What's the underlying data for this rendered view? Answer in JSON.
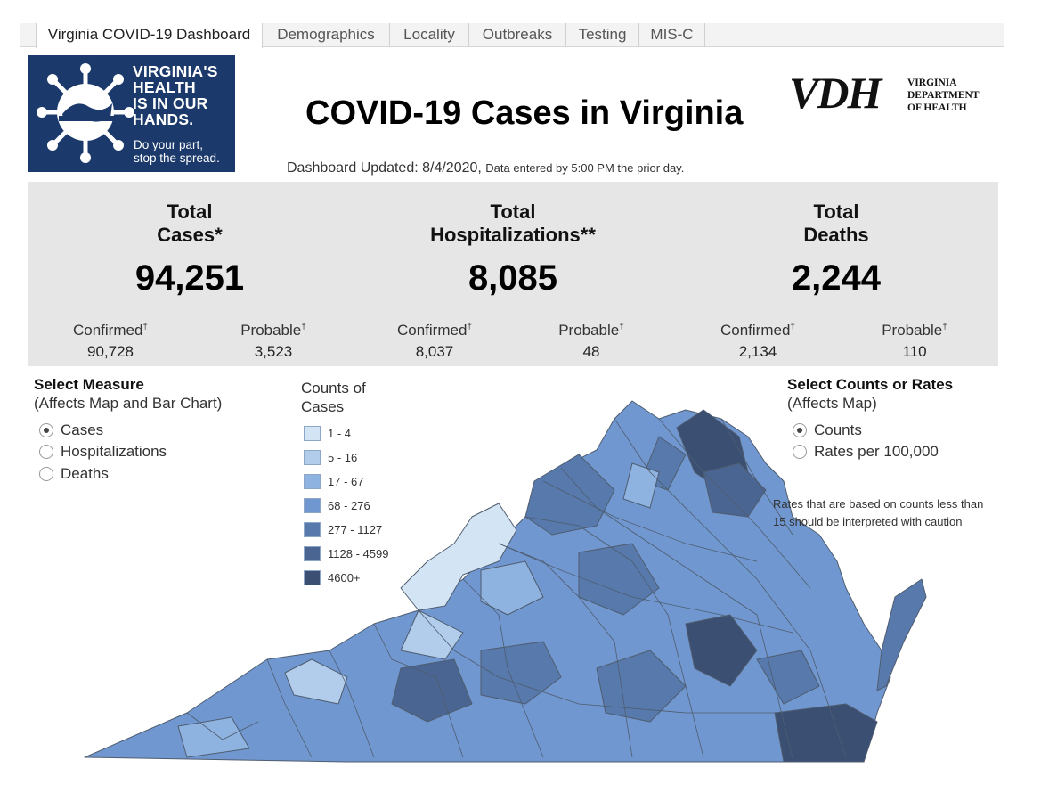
{
  "tabs": [
    {
      "label": "Virginia COVID-19 Dashboard",
      "active": true
    },
    {
      "label": "Demographics",
      "active": false
    },
    {
      "label": "Locality",
      "active": false
    },
    {
      "label": "Outbreaks",
      "active": false
    },
    {
      "label": "Testing",
      "active": false
    },
    {
      "label": "MIS-C",
      "active": false
    }
  ],
  "logo": {
    "headline_1": "VIRGINIA'S",
    "headline_2": "HEALTH",
    "headline_3": "IS IN OUR",
    "headline_4": "HANDS.",
    "sub_1": "Do your part,",
    "sub_2": "stop the spread.",
    "bg_color": "#1b3a6b"
  },
  "title": "COVID-19 Cases in Virginia",
  "updated": {
    "main": "Dashboard Updated: 8/4/2020,",
    "note": "Data entered by 5:00 PM the prior day."
  },
  "vdh": {
    "letters": "VDH",
    "line_1": "VIRGINIA",
    "line_2": "DEPARTMENT",
    "line_3": "OF HEALTH"
  },
  "stats": {
    "cases": {
      "head_1": "Total",
      "head_2": "Cases*",
      "total": "94,251",
      "confirmed_label": "Confirmed",
      "confirmed": "90,728",
      "probable_label": "Probable",
      "probable": "3,523"
    },
    "hosp": {
      "head_1": "Total",
      "head_2": "Hospitalizations**",
      "total": "8,085",
      "confirmed_label": "Confirmed",
      "confirmed": "8,037",
      "probable_label": "Probable",
      "probable": "48"
    },
    "deaths": {
      "head_1": "Total",
      "head_2": "Deaths",
      "total": "2,244",
      "confirmed_label": "Confirmed",
      "confirmed": "2,134",
      "probable_label": "Probable",
      "probable": "110"
    },
    "dagger": "†"
  },
  "measure": {
    "title": "Select Measure",
    "subtitle": "(Affects Map and Bar Chart)",
    "options": [
      "Cases",
      "Hospitalizations",
      "Deaths"
    ],
    "selected": "Cases"
  },
  "legend": {
    "title_1": "Counts of",
    "title_2": "Cases",
    "items": [
      {
        "label": "1 - 4",
        "color": "#d3e4f5"
      },
      {
        "label": "5 - 16",
        "color": "#b1cdeb"
      },
      {
        "label": "17 - 67",
        "color": "#8fb3e0"
      },
      {
        "label": "68 - 276",
        "color": "#7097cf"
      },
      {
        "label": "277 - 1127",
        "color": "#5779ab"
      },
      {
        "label": "1128 - 4599",
        "color": "#4a6591"
      },
      {
        "label": "4600+",
        "color": "#3b4f73"
      }
    ]
  },
  "counts_rates": {
    "title": "Select Counts or Rates",
    "subtitle": "(Affects Map)",
    "options": [
      "Counts",
      "Rates per 100,000"
    ],
    "selected": "Counts"
  },
  "note": "Rates that are based on counts less than 15 should be interpreted with caution"
}
